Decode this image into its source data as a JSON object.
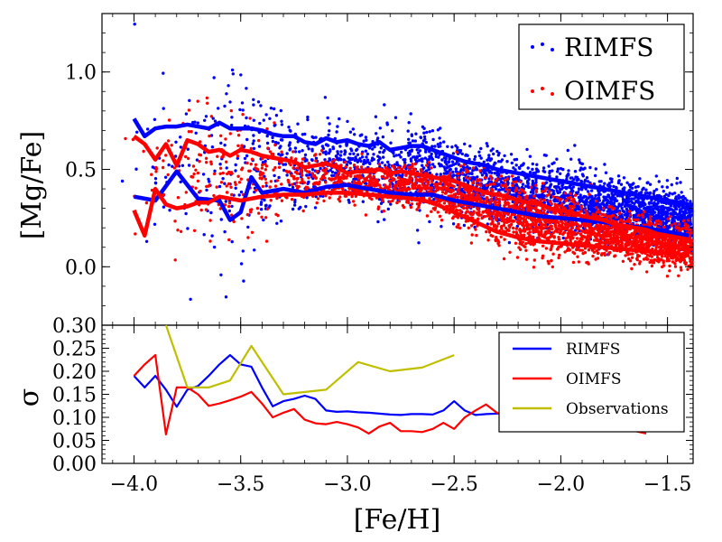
{
  "chart_data": [
    {
      "type": "scatter",
      "panel": "top",
      "xlabel": "",
      "ylabel": "[Mg/Fe]",
      "xlim": [
        -4.15,
        -1.38
      ],
      "ylim": [
        -0.3,
        1.3
      ],
      "yticks": [
        0.0,
        0.5,
        1.0
      ],
      "ytick_labels": [
        "0.0",
        "0.5",
        "1.0"
      ],
      "grid": false,
      "legend_position": "top-right",
      "series": [
        {
          "name": "RIMFS",
          "color": "#0000ff",
          "kind": "points",
          "upper_envelope": {
            "x": [
              -4.0,
              -3.95,
              -3.9,
              -3.85,
              -3.8,
              -3.75,
              -3.7,
              -3.65,
              -3.6,
              -3.55,
              -3.5,
              -3.45,
              -3.4,
              -3.35,
              -3.3,
              -3.25,
              -3.2,
              -3.15,
              -3.1,
              -3.05,
              -3.0,
              -2.95,
              -2.9,
              -2.85,
              -2.8,
              -2.75,
              -2.7,
              -2.65,
              -2.6,
              -2.55,
              -2.5,
              -2.45,
              -2.4,
              -2.35,
              -2.3,
              -2.25,
              -2.2,
              -2.15,
              -2.1,
              -2.05,
              -2.0,
              -1.95,
              -1.9,
              -1.85,
              -1.8,
              -1.75,
              -1.7,
              -1.65,
              -1.6,
              -1.55,
              -1.5,
              -1.45,
              -1.4
            ],
            "y": [
              0.76,
              0.67,
              0.71,
              0.72,
              0.72,
              0.73,
              0.72,
              0.71,
              0.74,
              0.71,
              0.71,
              0.71,
              0.7,
              0.68,
              0.67,
              0.67,
              0.64,
              0.63,
              0.66,
              0.64,
              0.65,
              0.63,
              0.62,
              0.64,
              0.6,
              0.61,
              0.62,
              0.62,
              0.6,
              0.58,
              0.56,
              0.54,
              0.53,
              0.52,
              0.5,
              0.49,
              0.48,
              0.47,
              0.46,
              0.45,
              0.44,
              0.43,
              0.42,
              0.41,
              0.4,
              0.39,
              0.38,
              0.37,
              0.36,
              0.35,
              0.34,
              0.33,
              0.32
            ]
          },
          "lower_envelope": {
            "x": [
              -4.0,
              -3.9,
              -3.8,
              -3.7,
              -3.6,
              -3.55,
              -3.5,
              -3.45,
              -3.4,
              -3.3,
              -3.2,
              -3.1,
              -3.0,
              -2.9,
              -2.8,
              -2.7,
              -2.6,
              -2.5,
              -2.4,
              -2.3,
              -2.2,
              -2.1,
              -2.0,
              -1.9,
              -1.8,
              -1.7,
              -1.6,
              -1.55,
              -1.5,
              -1.45,
              -1.4
            ],
            "y": [
              0.36,
              0.34,
              0.49,
              0.35,
              0.34,
              0.24,
              0.28,
              0.46,
              0.38,
              0.4,
              0.38,
              0.41,
              0.42,
              0.4,
              0.38,
              0.37,
              0.37,
              0.34,
              0.32,
              0.3,
              0.28,
              0.26,
              0.25,
              0.24,
              0.23,
              0.21,
              0.2,
              0.19,
              0.18,
              0.17,
              0.16
            ]
          }
        },
        {
          "name": "OIMFS",
          "color": "#ff0000",
          "kind": "points",
          "upper_envelope": {
            "x": [
              -4.0,
              -3.95,
              -3.9,
              -3.85,
              -3.8,
              -3.75,
              -3.7,
              -3.65,
              -3.6,
              -3.55,
              -3.5,
              -3.45,
              -3.4,
              -3.35,
              -3.3,
              -3.25,
              -3.2,
              -3.15,
              -3.1,
              -3.05,
              -3.0,
              -2.95,
              -2.9,
              -2.85,
              -2.8,
              -2.75,
              -2.7,
              -2.65,
              -2.6,
              -2.55,
              -2.5,
              -2.45,
              -2.4,
              -2.35,
              -2.3,
              -2.25,
              -2.2,
              -2.15,
              -2.1,
              -2.05,
              -2.0,
              -1.95,
              -1.9,
              -1.85,
              -1.8,
              -1.75,
              -1.7,
              -1.65,
              -1.6,
              -1.55,
              -1.5,
              -1.45,
              -1.4
            ],
            "y": [
              0.67,
              0.63,
              0.55,
              0.63,
              0.52,
              0.65,
              0.63,
              0.59,
              0.6,
              0.57,
              0.6,
              0.59,
              0.57,
              0.56,
              0.55,
              0.54,
              0.51,
              0.52,
              0.53,
              0.51,
              0.48,
              0.49,
              0.49,
              0.5,
              0.48,
              0.49,
              0.48,
              0.47,
              0.46,
              0.45,
              0.44,
              0.42,
              0.4,
              0.38,
              0.37,
              0.36,
              0.34,
              0.33,
              0.32,
              0.3,
              0.29,
              0.28,
              0.26,
              0.25,
              0.24,
              0.22,
              0.21,
              0.2,
              0.19,
              0.17,
              0.16,
              0.15,
              0.14
            ]
          },
          "lower_envelope": {
            "x": [
              -4.0,
              -3.95,
              -3.9,
              -3.85,
              -3.8,
              -3.75,
              -3.7,
              -3.65,
              -3.6,
              -3.5,
              -3.4,
              -3.3,
              -3.2,
              -3.1,
              -3.0,
              -2.9,
              -2.8,
              -2.7,
              -2.6,
              -2.5,
              -2.4,
              -2.3,
              -2.2,
              -2.1,
              -2.0,
              -1.9,
              -1.8,
              -1.7,
              -1.6,
              -1.5,
              -1.4
            ],
            "y": [
              0.29,
              0.16,
              0.4,
              0.32,
              0.3,
              0.31,
              0.33,
              0.33,
              0.36,
              0.34,
              0.36,
              0.37,
              0.37,
              0.38,
              0.38,
              0.37,
              0.36,
              0.35,
              0.33,
              0.28,
              0.23,
              0.18,
              0.15,
              0.13,
              0.12,
              0.11,
              0.1,
              0.09,
              0.08,
              0.07,
              0.06
            ]
          }
        }
      ]
    },
    {
      "type": "line",
      "panel": "bottom",
      "xlabel": "[Fe/H]",
      "ylabel": "σ",
      "xlim": [
        -4.15,
        -1.38
      ],
      "ylim": [
        0.0,
        0.3
      ],
      "xticks": [
        -4.0,
        -3.5,
        -3.0,
        -2.5,
        -2.0,
        -1.5
      ],
      "xtick_labels": [
        "−4.0",
        "−3.5",
        "−3.0",
        "−2.5",
        "−2.0",
        "−1.5"
      ],
      "yticks": [
        0.0,
        0.05,
        0.1,
        0.15,
        0.2,
        0.25,
        0.3
      ],
      "ytick_labels": [
        "0.00",
        "0.05",
        "0.10",
        "0.15",
        "0.20",
        "0.25",
        "0.30"
      ],
      "grid": false,
      "legend_position": "top-right",
      "series": [
        {
          "name": "RIMFS",
          "color": "#0000ff",
          "x": [
            -4.0,
            -3.95,
            -3.9,
            -3.85,
            -3.8,
            -3.75,
            -3.7,
            -3.65,
            -3.6,
            -3.55,
            -3.5,
            -3.45,
            -3.4,
            -3.35,
            -3.3,
            -3.25,
            -3.2,
            -3.15,
            -3.1,
            -3.05,
            -3.0,
            -2.95,
            -2.9,
            -2.85,
            -2.8,
            -2.75,
            -2.7,
            -2.65,
            -2.6,
            -2.55,
            -2.5,
            -2.45,
            -2.4,
            -2.35,
            -2.3,
            -2.25,
            -2.2,
            -2.15,
            -2.1,
            -2.05,
            -2.0,
            -1.95,
            -1.9,
            -1.85,
            -1.8,
            -1.75,
            -1.7,
            -1.65,
            -1.6
          ],
          "y": [
            0.19,
            0.165,
            0.19,
            0.16,
            0.123,
            0.16,
            0.168,
            0.19,
            0.215,
            0.235,
            0.215,
            0.21,
            0.165,
            0.124,
            0.135,
            0.14,
            0.147,
            0.14,
            0.115,
            0.112,
            0.113,
            0.111,
            0.11,
            0.108,
            0.106,
            0.105,
            0.107,
            0.107,
            0.106,
            0.115,
            0.135,
            0.115,
            0.105,
            0.107,
            0.108,
            0.11,
            0.112,
            0.112,
            0.113,
            0.113,
            0.113,
            0.11,
            0.108,
            0.105,
            0.1,
            0.095,
            0.085,
            0.077,
            0.07
          ]
        },
        {
          "name": "OIMFS",
          "color": "#ff0000",
          "x": [
            -4.0,
            -3.95,
            -3.9,
            -3.85,
            -3.8,
            -3.75,
            -3.7,
            -3.65,
            -3.6,
            -3.55,
            -3.5,
            -3.45,
            -3.4,
            -3.35,
            -3.3,
            -3.25,
            -3.2,
            -3.15,
            -3.1,
            -3.05,
            -3.0,
            -2.95,
            -2.9,
            -2.85,
            -2.8,
            -2.75,
            -2.7,
            -2.65,
            -2.6,
            -2.55,
            -2.5,
            -2.45,
            -2.4,
            -2.35,
            -2.3,
            -2.25,
            -2.2,
            -2.15,
            -2.1,
            -2.05,
            -2.0,
            -1.95,
            -1.9,
            -1.85,
            -1.8,
            -1.75,
            -1.7,
            -1.65,
            -1.6
          ],
          "y": [
            0.19,
            0.215,
            0.235,
            0.063,
            0.165,
            0.165,
            0.15,
            0.125,
            0.13,
            0.137,
            0.145,
            0.155,
            0.13,
            0.1,
            0.11,
            0.118,
            0.095,
            0.087,
            0.085,
            0.09,
            0.085,
            0.078,
            0.065,
            0.08,
            0.088,
            0.07,
            0.07,
            0.068,
            0.075,
            0.088,
            0.075,
            0.1,
            0.115,
            0.128,
            0.11,
            0.1,
            0.095,
            0.09,
            0.09,
            0.09,
            0.09,
            0.088,
            0.085,
            0.083,
            0.08,
            0.077,
            0.073,
            0.07,
            0.065
          ]
        },
        {
          "name": "Observations",
          "color": "#bfbf00",
          "x": [
            -3.85,
            -3.75,
            -3.65,
            -3.55,
            -3.45,
            -3.3,
            -3.1,
            -2.95,
            -2.8,
            -2.65,
            -2.5
          ],
          "y": [
            0.3,
            0.165,
            0.165,
            0.18,
            0.255,
            0.15,
            0.16,
            0.22,
            0.2,
            0.208,
            0.235
          ]
        }
      ]
    }
  ]
}
